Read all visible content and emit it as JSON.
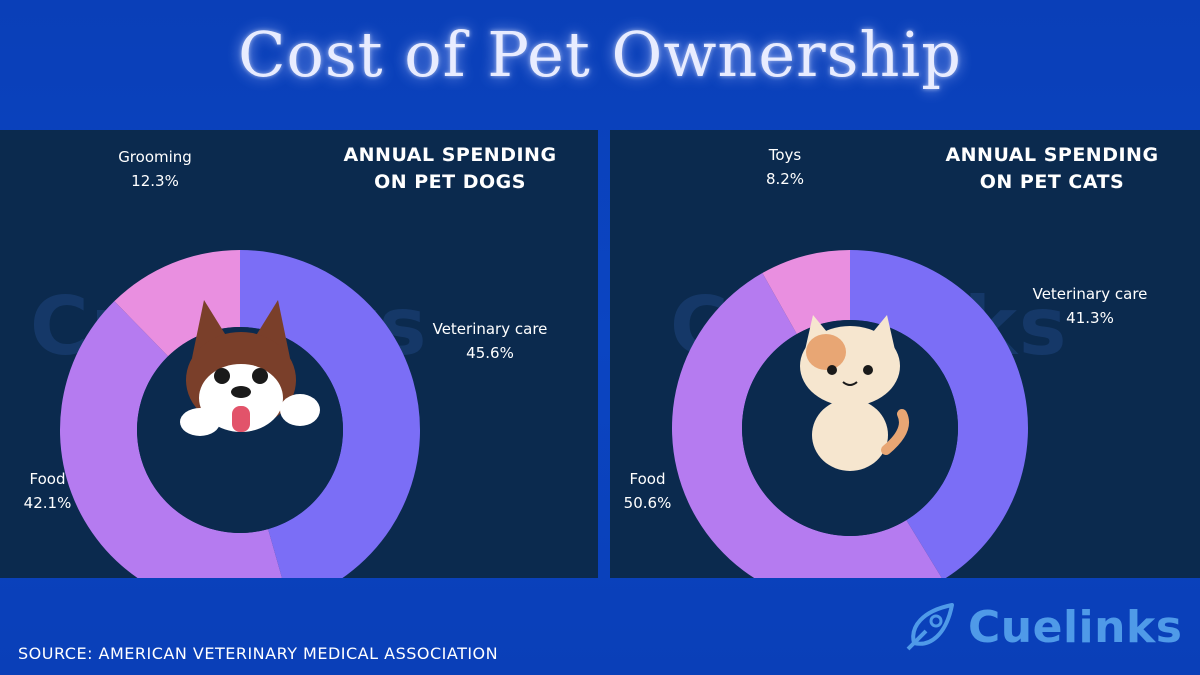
{
  "title": "Cost of Pet Ownership",
  "source": "SOURCE: AMERICAN VETERINARY MEDICAL ASSOCIATION",
  "brand": "Cuelinks",
  "colors": {
    "background": "#0b45c2",
    "panel": "#0b2a4e",
    "veterinary_care": "#7b6ef6",
    "food": "#b57bf0",
    "grooming": "#e98fe0",
    "toys": "#e98fe0",
    "center": "#0b2a4e"
  },
  "icons": {
    "dogs_center": "husky-dog-face-icon",
    "cats_center": "cat-sitting-icon"
  },
  "chart_data": [
    {
      "type": "pie",
      "title": "ANNUAL SPENDING ON PET DOGS",
      "title_lines": [
        "ANNUAL SPENDING",
        "ON PET DOGS"
      ],
      "style": "donut",
      "categories": [
        "Veterinary care",
        "Food",
        "Grooming"
      ],
      "values": [
        45.6,
        42.1,
        12.3
      ],
      "value_labels": [
        "45.6%",
        "42.1%",
        "12.3%"
      ],
      "colors": [
        "#7b6ef6",
        "#b57bf0",
        "#e98fe0"
      ]
    },
    {
      "type": "pie",
      "title": "ANNUAL SPENDING ON PET CATS",
      "title_lines": [
        "ANNUAL SPENDING",
        "ON PET CATS"
      ],
      "style": "donut",
      "categories": [
        "Veterinary care",
        "Food",
        "Toys"
      ],
      "values": [
        41.3,
        50.6,
        8.2
      ],
      "value_labels": [
        "41.3%",
        "50.6%",
        "8.2%"
      ],
      "colors": [
        "#7b6ef6",
        "#b57bf0",
        "#e98fe0"
      ]
    }
  ]
}
